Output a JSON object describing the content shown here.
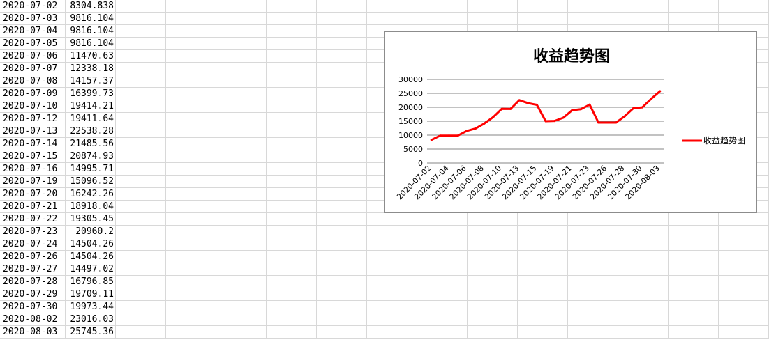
{
  "sheet": {
    "rows": [
      {
        "date": "2020-07-02",
        "value": "8304.838"
      },
      {
        "date": "2020-07-03",
        "value": "9816.104"
      },
      {
        "date": "2020-07-04",
        "value": "9816.104"
      },
      {
        "date": "2020-07-05",
        "value": "9816.104"
      },
      {
        "date": "2020-07-06",
        "value": "11470.63"
      },
      {
        "date": "2020-07-07",
        "value": "12338.18"
      },
      {
        "date": "2020-07-08",
        "value": "14157.37"
      },
      {
        "date": "2020-07-09",
        "value": "16399.73"
      },
      {
        "date": "2020-07-10",
        "value": "19414.21"
      },
      {
        "date": "2020-07-12",
        "value": "19411.64"
      },
      {
        "date": "2020-07-13",
        "value": "22538.28"
      },
      {
        "date": "2020-07-14",
        "value": "21485.56"
      },
      {
        "date": "2020-07-15",
        "value": "20874.93"
      },
      {
        "date": "2020-07-16",
        "value": "14995.71"
      },
      {
        "date": "2020-07-19",
        "value": "15096.52"
      },
      {
        "date": "2020-07-20",
        "value": "16242.26"
      },
      {
        "date": "2020-07-21",
        "value": "18918.04"
      },
      {
        "date": "2020-07-22",
        "value": "19305.45"
      },
      {
        "date": "2020-07-23",
        "value": "20960.2"
      },
      {
        "date": "2020-07-24",
        "value": "14504.26"
      },
      {
        "date": "2020-07-26",
        "value": "14504.26"
      },
      {
        "date": "2020-07-27",
        "value": "14497.02"
      },
      {
        "date": "2020-07-28",
        "value": "16796.85"
      },
      {
        "date": "2020-07-29",
        "value": "19709.11"
      },
      {
        "date": "2020-07-30",
        "value": "19973.44"
      },
      {
        "date": "2020-08-02",
        "value": "23016.03"
      },
      {
        "date": "2020-08-03",
        "value": "25745.36"
      }
    ]
  },
  "chart_data": {
    "type": "line",
    "title": "收益趋势图",
    "x": [
      "2020-07-02",
      "2020-07-03",
      "2020-07-04",
      "2020-07-05",
      "2020-07-06",
      "2020-07-07",
      "2020-07-08",
      "2020-07-09",
      "2020-07-10",
      "2020-07-12",
      "2020-07-13",
      "2020-07-14",
      "2020-07-15",
      "2020-07-16",
      "2020-07-19",
      "2020-07-20",
      "2020-07-21",
      "2020-07-22",
      "2020-07-23",
      "2020-07-24",
      "2020-07-26",
      "2020-07-27",
      "2020-07-28",
      "2020-07-29",
      "2020-07-30",
      "2020-08-02",
      "2020-08-03"
    ],
    "x_tick_labels": [
      "2020-07-02",
      "2020-07-04",
      "2020-07-06",
      "2020-07-08",
      "2020-07-10",
      "2020-07-13",
      "2020-07-15",
      "2020-07-19",
      "2020-07-21",
      "2020-07-23",
      "2020-07-26",
      "2020-07-28",
      "2020-07-30",
      "2020-08-03"
    ],
    "series": [
      {
        "name": "收益趋势图",
        "color": "#ff0000",
        "values": [
          8304.838,
          9816.104,
          9816.104,
          9816.104,
          11470.63,
          12338.18,
          14157.37,
          16399.73,
          19414.21,
          19411.64,
          22538.28,
          21485.56,
          20874.93,
          14995.71,
          15096.52,
          16242.26,
          18918.04,
          19305.45,
          20960.2,
          14504.26,
          14504.26,
          14497.02,
          16796.85,
          19709.11,
          19973.44,
          23016.03,
          25745.36
        ]
      }
    ],
    "y_ticks": [
      "0",
      "5000",
      "10000",
      "15000",
      "20000",
      "25000",
      "30000"
    ],
    "ylim": [
      0,
      30000
    ],
    "grid": true,
    "legend_position": "right",
    "xlabel": "",
    "ylabel": ""
  }
}
